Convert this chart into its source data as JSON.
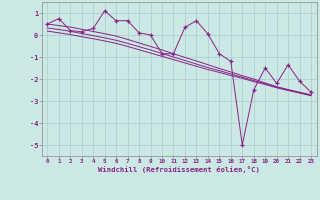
{
  "xlabel": "Windchill (Refroidissement éolien,°C)",
  "background_color": "#cce8e4",
  "grid_color": "#aacccc",
  "line_color": "#882288",
  "ylim": [
    -5.5,
    1.5
  ],
  "xlim": [
    -0.5,
    23.5
  ],
  "x_data": [
    0,
    1,
    2,
    3,
    4,
    5,
    6,
    7,
    8,
    9,
    10,
    11,
    12,
    13,
    14,
    15,
    16,
    17,
    18,
    19,
    20,
    21,
    22,
    23
  ],
  "y_main": [
    0.5,
    0.75,
    0.2,
    0.15,
    0.3,
    1.1,
    0.65,
    0.65,
    0.1,
    0.0,
    -0.85,
    -0.85,
    0.35,
    0.65,
    0.05,
    -0.85,
    -1.2,
    -5.0,
    -2.5,
    -1.5,
    -2.2,
    -1.35,
    -2.1,
    -2.6
  ],
  "y_smooth1": [
    0.5,
    0.43,
    0.36,
    0.26,
    0.16,
    0.06,
    -0.05,
    -0.2,
    -0.36,
    -0.52,
    -0.68,
    -0.85,
    -1.02,
    -1.18,
    -1.35,
    -1.52,
    -1.68,
    -1.85,
    -2.0,
    -2.18,
    -2.35,
    -2.48,
    -2.6,
    -2.72
  ],
  "y_smooth2": [
    0.32,
    0.25,
    0.17,
    0.07,
    -0.03,
    -0.13,
    -0.24,
    -0.38,
    -0.53,
    -0.68,
    -0.84,
    -1.0,
    -1.16,
    -1.32,
    -1.48,
    -1.62,
    -1.77,
    -1.92,
    -2.07,
    -2.22,
    -2.37,
    -2.5,
    -2.62,
    -2.74
  ],
  "y_smooth3": [
    0.18,
    0.1,
    0.02,
    -0.08,
    -0.17,
    -0.27,
    -0.38,
    -0.52,
    -0.67,
    -0.82,
    -0.97,
    -1.12,
    -1.27,
    -1.42,
    -1.57,
    -1.7,
    -1.84,
    -1.97,
    -2.12,
    -2.25,
    -2.4,
    -2.52,
    -2.64,
    -2.76
  ]
}
